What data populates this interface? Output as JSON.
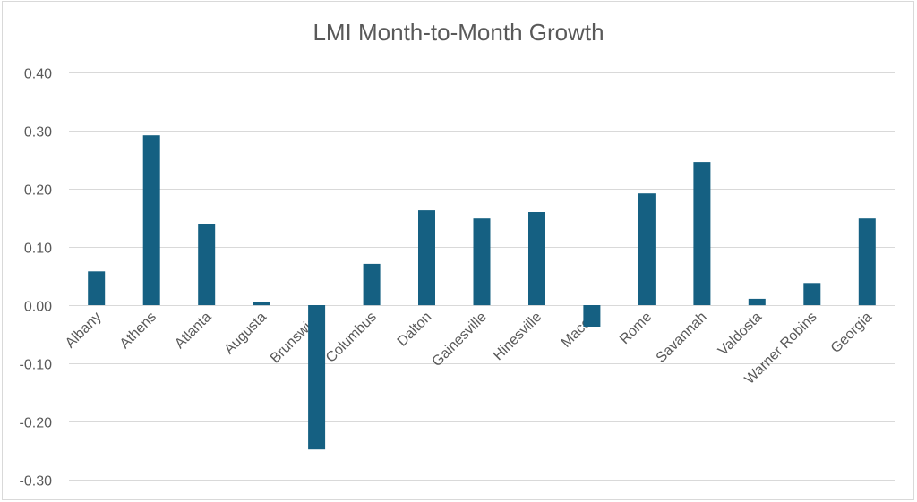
{
  "chart_data": {
    "type": "bar",
    "title": "LMI Month-to-Month Growth",
    "xlabel": "",
    "ylabel": "",
    "categories": [
      "Albany",
      "Athens",
      "Atlanta",
      "Augusta",
      "Brunswick",
      "Columbus",
      "Dalton",
      "Gainesville",
      "Hinesville",
      "Macon",
      "Rome",
      "Savannah",
      "Valdosta",
      "Warner Robins",
      "Georgia"
    ],
    "values": [
      0.058,
      0.292,
      0.14,
      0.005,
      -0.248,
      0.071,
      0.163,
      0.149,
      0.16,
      -0.037,
      0.192,
      0.246,
      0.011,
      0.038,
      0.149
    ],
    "ylim": [
      -0.3,
      0.4
    ],
    "yticks": [
      "0.40",
      "0.30",
      "0.20",
      "0.10",
      "0.00",
      "-0.10",
      "-0.20",
      "-0.30"
    ],
    "ytick_values": [
      0.4,
      0.3,
      0.2,
      0.1,
      0.0,
      -0.1,
      -0.2,
      -0.3
    ],
    "grid": true,
    "legend": "none",
    "bar_color": "#156082"
  }
}
